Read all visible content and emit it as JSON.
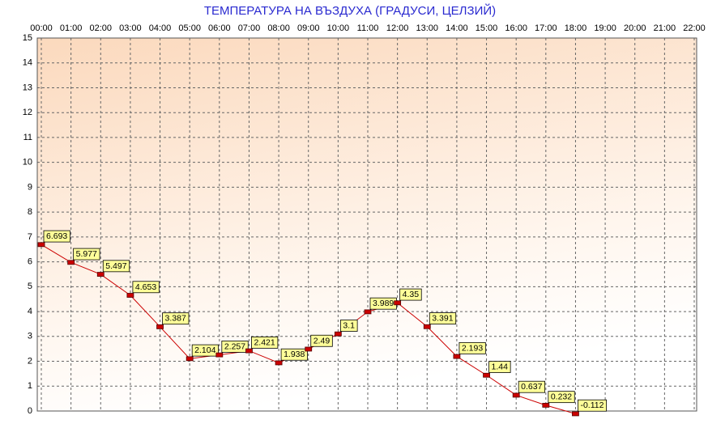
{
  "chart_data": {
    "type": "line",
    "title": "ТЕМПЕРАТУРА НА ВЪЗДУХА  (ГРАДУСИ, ЦЕЛЗИЙ)",
    "categories": [
      "00:00",
      "01:00",
      "02:00",
      "03:00",
      "04:00",
      "05:00",
      "06:00",
      "07:00",
      "08:00",
      "09:00",
      "10:00",
      "11:00",
      "12:00",
      "13:00",
      "14:00",
      "15:00",
      "16:00",
      "17:00",
      "18:00",
      "19:00",
      "20:00",
      "21:00",
      "22:00"
    ],
    "series": [
      {
        "color": "#cc0000",
        "values": [
          6.693,
          5.977,
          5.497,
          4.653,
          3.387,
          2.104,
          2.257,
          2.421,
          1.938,
          2.49,
          3.1,
          3.989,
          4.35,
          3.391,
          2.193,
          1.44,
          0.637,
          0.232,
          -0.112,
          null,
          null,
          null,
          null
        ]
      }
    ],
    "ylim": [
      0,
      15
    ],
    "yticks": [
      0,
      1,
      2,
      3,
      4,
      5,
      6,
      7,
      8,
      9,
      10,
      11,
      12,
      13,
      14,
      15
    ],
    "grid": true
  }
}
